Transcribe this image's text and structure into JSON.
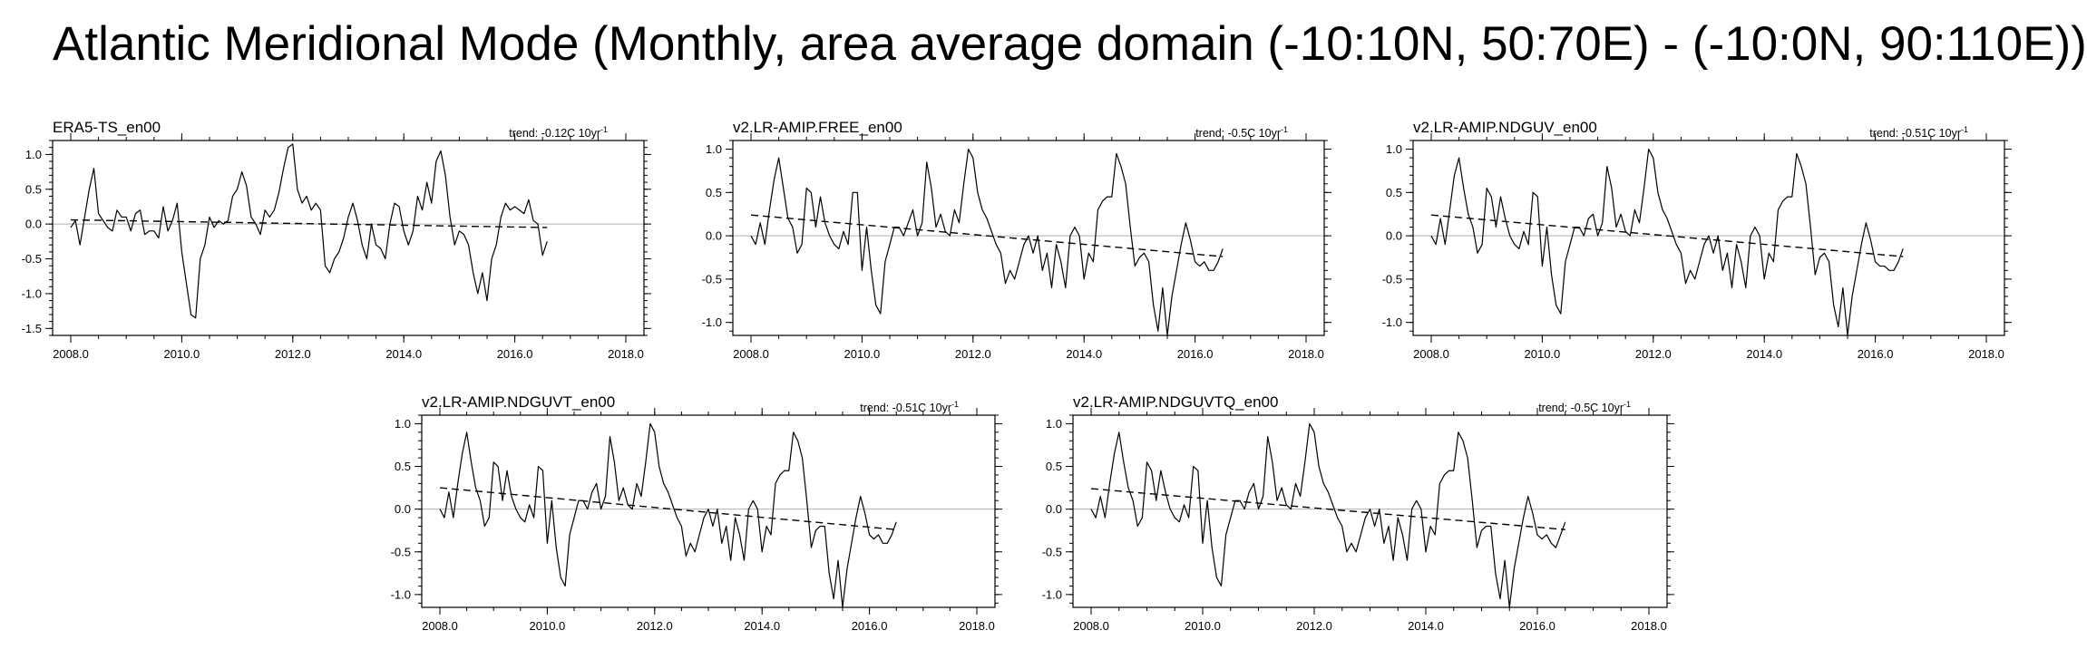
{
  "title": "Atlantic Meridional Mode (Monthly, area average domain (-10:10N, 50:70E) - (-10:0N, 90:110E))",
  "chart_data": [
    {
      "type": "line",
      "title": "ERA5-TS_en00",
      "trend_label": "trend: -0.12C 10yr",
      "trend_label_exponent": "-1",
      "xlim": [
        2008.0,
        2018.0
      ],
      "ylim": [
        -1.6,
        1.2
      ],
      "xticks": [
        2008.0,
        2010.0,
        2012.0,
        2014.0,
        2016.0,
        2018.0
      ],
      "xtick_labels": [
        "2008.0",
        "2010.0",
        "2012.0",
        "2014.0",
        "2016.0",
        "2018.0"
      ],
      "yticks": [
        1.0,
        0.5,
        0.0,
        -0.5,
        -1.0,
        -1.5
      ],
      "ytick_labels": [
        "1.0",
        "0.5",
        "0.0",
        "-0.5",
        "-1.0",
        "-1.5"
      ],
      "zero_line": true,
      "x_start": 2008.0,
      "x_step": 0.08333,
      "series": [
        {
          "values": [
            -0.05,
            0.05,
            -0.3,
            0.1,
            0.5,
            0.8,
            0.15,
            0.05,
            -0.05,
            -0.1,
            0.2,
            0.1,
            0.1,
            -0.1,
            0.15,
            0.2,
            -0.15,
            -0.1,
            -0.1,
            -0.2,
            0.25,
            -0.1,
            0.05,
            0.3,
            -0.4,
            -0.85,
            -1.3,
            -1.35,
            -0.5,
            -0.3,
            0.1,
            -0.05,
            0.05,
            0.0,
            0.05,
            0.4,
            0.5,
            0.75,
            0.55,
            0.1,
            0.0,
            -0.15,
            0.2,
            0.1,
            0.2,
            0.45,
            0.8,
            1.1,
            1.15,
            0.5,
            0.3,
            0.4,
            0.2,
            0.3,
            0.2,
            -0.6,
            -0.7,
            -0.5,
            -0.4,
            -0.2,
            0.1,
            0.3,
            0.05,
            -0.3,
            -0.5,
            0.0,
            -0.3,
            -0.35,
            -0.5,
            0.0,
            0.3,
            0.25,
            -0.1,
            -0.3,
            -0.1,
            0.4,
            0.2,
            0.6,
            0.3,
            0.9,
            1.05,
            0.7,
            0.1,
            -0.3,
            -0.1,
            -0.15,
            -0.3,
            -0.7,
            -1.0,
            -0.7,
            -1.1,
            -0.5,
            -0.3,
            0.1,
            0.3,
            0.2,
            0.25,
            0.2,
            0.15,
            0.35,
            0.05,
            0.0,
            -0.45,
            -0.25
          ]
        }
      ],
      "trend": [
        0.06,
        -0.05
      ]
    },
    {
      "type": "line",
      "title": "v2.LR-AMIP.FREE_en00",
      "trend_label": "trend: -0.5C 10yr",
      "trend_label_exponent": "-1",
      "xlim": [
        2008.0,
        2018.0
      ],
      "ylim": [
        -1.15,
        1.1
      ],
      "xticks": [
        2008.0,
        2010.0,
        2012.0,
        2014.0,
        2016.0,
        2018.0
      ],
      "xtick_labels": [
        "2008.0",
        "2010.0",
        "2012.0",
        "2014.0",
        "2016.0",
        "2018.0"
      ],
      "yticks": [
        1.0,
        0.5,
        0.0,
        -0.5,
        -1.0
      ],
      "ytick_labels": [
        "1.0",
        "0.5",
        "0.0",
        "-0.5",
        "-1.0"
      ],
      "zero_line": true,
      "x_start": 2008.0,
      "x_step": 0.08333,
      "series": [
        {
          "values": [
            0.0,
            -0.1,
            0.15,
            -0.1,
            0.3,
            0.65,
            0.9,
            0.55,
            0.2,
            0.1,
            -0.2,
            -0.1,
            0.55,
            0.5,
            0.1,
            0.45,
            0.15,
            0.0,
            -0.1,
            -0.15,
            0.05,
            -0.1,
            0.5,
            0.5,
            -0.4,
            0.1,
            -0.4,
            -0.8,
            -0.9,
            -0.3,
            -0.1,
            0.1,
            0.1,
            0.0,
            0.15,
            0.3,
            0.0,
            0.15,
            0.85,
            0.55,
            0.1,
            0.25,
            0.05,
            0.0,
            0.3,
            0.15,
            0.6,
            1.0,
            0.9,
            0.5,
            0.3,
            0.2,
            0.05,
            -0.1,
            -0.2,
            -0.55,
            -0.4,
            -0.5,
            -0.3,
            -0.1,
            0.0,
            -0.2,
            0.0,
            -0.4,
            -0.2,
            -0.6,
            -0.1,
            -0.3,
            -0.6,
            0.0,
            0.1,
            0.0,
            -0.5,
            -0.2,
            -0.3,
            0.3,
            0.4,
            0.45,
            0.45,
            0.95,
            0.8,
            0.6,
            0.1,
            -0.35,
            -0.25,
            -0.2,
            -0.3,
            -0.8,
            -1.1,
            -0.6,
            -1.15,
            -0.7,
            -0.4,
            -0.1,
            0.15,
            -0.05,
            -0.3,
            -0.35,
            -0.3,
            -0.4,
            -0.4,
            -0.3,
            -0.15
          ]
        }
      ],
      "trend": [
        0.24,
        -0.24
      ]
    },
    {
      "type": "line",
      "title": "v2.LR-AMIP.NDGUV_en00",
      "trend_label": "trend: -0.51C 10yr",
      "trend_label_exponent": "-1",
      "xlim": [
        2008.0,
        2018.0
      ],
      "ylim": [
        -1.15,
        1.1
      ],
      "xticks": [
        2008.0,
        2010.0,
        2012.0,
        2014.0,
        2016.0,
        2018.0
      ],
      "xtick_labels": [
        "2008.0",
        "2010.0",
        "2012.0",
        "2014.0",
        "2016.0",
        "2018.0"
      ],
      "yticks": [
        1.0,
        0.5,
        0.0,
        -0.5,
        -1.0
      ],
      "ytick_labels": [
        "1.0",
        "0.5",
        "0.0",
        "-0.5",
        "-1.0"
      ],
      "zero_line": true,
      "x_start": 2008.0,
      "x_step": 0.08333,
      "series": [
        {
          "values": [
            0.0,
            -0.1,
            0.2,
            -0.1,
            0.3,
            0.7,
            0.9,
            0.55,
            0.25,
            0.1,
            -0.2,
            -0.1,
            0.55,
            0.45,
            0.1,
            0.45,
            0.2,
            0.0,
            -0.1,
            -0.15,
            0.05,
            -0.1,
            0.5,
            0.45,
            -0.35,
            0.1,
            -0.45,
            -0.8,
            -0.9,
            -0.3,
            -0.1,
            0.1,
            0.1,
            0.0,
            0.2,
            0.25,
            0.0,
            0.15,
            0.8,
            0.55,
            0.1,
            0.25,
            0.05,
            0.0,
            0.3,
            0.15,
            0.55,
            1.0,
            0.9,
            0.5,
            0.3,
            0.2,
            0.05,
            -0.1,
            -0.2,
            -0.55,
            -0.4,
            -0.5,
            -0.3,
            -0.1,
            0.0,
            -0.2,
            0.0,
            -0.4,
            -0.2,
            -0.6,
            -0.1,
            -0.3,
            -0.6,
            0.0,
            0.1,
            0.0,
            -0.5,
            -0.2,
            -0.3,
            0.3,
            0.4,
            0.45,
            0.45,
            0.95,
            0.8,
            0.6,
            0.1,
            -0.45,
            -0.25,
            -0.2,
            -0.3,
            -0.8,
            -1.05,
            -0.6,
            -1.15,
            -0.7,
            -0.4,
            -0.1,
            0.15,
            -0.05,
            -0.3,
            -0.35,
            -0.35,
            -0.4,
            -0.4,
            -0.3,
            -0.15
          ]
        }
      ],
      "trend": [
        0.24,
        -0.24
      ]
    },
    {
      "type": "line",
      "title": "v2.LR-AMIP.NDGUVT_en00",
      "trend_label": "trend: -0.51C 10yr",
      "trend_label_exponent": "-1",
      "xlim": [
        2008.0,
        2018.0
      ],
      "ylim": [
        -1.15,
        1.1
      ],
      "xticks": [
        2008.0,
        2010.0,
        2012.0,
        2014.0,
        2016.0,
        2018.0
      ],
      "xtick_labels": [
        "2008.0",
        "2010.0",
        "2012.0",
        "2014.0",
        "2016.0",
        "2018.0"
      ],
      "yticks": [
        1.0,
        0.5,
        0.0,
        -0.5,
        -1.0
      ],
      "ytick_labels": [
        "1.0",
        "0.5",
        "0.0",
        "-0.5",
        "-1.0"
      ],
      "zero_line": true,
      "x_start": 2008.0,
      "x_step": 0.08333,
      "series": [
        {
          "values": [
            0.0,
            -0.1,
            0.2,
            -0.1,
            0.3,
            0.65,
            0.9,
            0.55,
            0.25,
            0.1,
            -0.2,
            -0.1,
            0.55,
            0.5,
            0.1,
            0.45,
            0.15,
            0.0,
            -0.1,
            -0.15,
            0.05,
            -0.1,
            0.5,
            0.45,
            -0.4,
            0.1,
            -0.45,
            -0.8,
            -0.9,
            -0.3,
            -0.1,
            0.1,
            0.1,
            0.0,
            0.2,
            0.3,
            0.0,
            0.15,
            0.85,
            0.55,
            0.1,
            0.25,
            0.05,
            0.0,
            0.3,
            0.15,
            0.55,
            1.0,
            0.9,
            0.5,
            0.3,
            0.2,
            0.05,
            -0.1,
            -0.2,
            -0.55,
            -0.4,
            -0.5,
            -0.3,
            -0.1,
            0.0,
            -0.2,
            0.0,
            -0.4,
            -0.2,
            -0.6,
            -0.1,
            -0.3,
            -0.6,
            0.0,
            0.1,
            0.0,
            -0.5,
            -0.2,
            -0.3,
            0.3,
            0.4,
            0.45,
            0.45,
            0.9,
            0.8,
            0.6,
            0.1,
            -0.45,
            -0.25,
            -0.2,
            -0.2,
            -0.75,
            -1.05,
            -0.6,
            -1.15,
            -0.7,
            -0.4,
            -0.1,
            0.15,
            -0.05,
            -0.3,
            -0.35,
            -0.3,
            -0.4,
            -0.4,
            -0.3,
            -0.15
          ]
        }
      ],
      "trend": [
        0.25,
        -0.24
      ]
    },
    {
      "type": "line",
      "title": "v2.LR-AMIP.NDGUVTQ_en00",
      "trend_label": "trend: -0.5C 10yr",
      "trend_label_exponent": "-1",
      "xlim": [
        2008.0,
        2018.0
      ],
      "ylim": [
        -1.15,
        1.1
      ],
      "xticks": [
        2008.0,
        2010.0,
        2012.0,
        2014.0,
        2016.0,
        2018.0
      ],
      "xtick_labels": [
        "2008.0",
        "2010.0",
        "2012.0",
        "2014.0",
        "2016.0",
        "2018.0"
      ],
      "yticks": [
        1.0,
        0.5,
        0.0,
        -0.5,
        -1.0
      ],
      "ytick_labels": [
        "1.0",
        "0.5",
        "0.0",
        "-0.5",
        "-1.0"
      ],
      "zero_line": true,
      "x_start": 2008.0,
      "x_step": 0.08333,
      "series": [
        {
          "values": [
            0.0,
            -0.1,
            0.15,
            -0.1,
            0.3,
            0.65,
            0.9,
            0.55,
            0.25,
            0.1,
            -0.2,
            -0.1,
            0.55,
            0.45,
            0.1,
            0.45,
            0.2,
            0.0,
            -0.1,
            -0.15,
            0.05,
            -0.1,
            0.5,
            0.45,
            -0.4,
            0.1,
            -0.45,
            -0.8,
            -0.9,
            -0.3,
            -0.1,
            0.1,
            0.1,
            0.0,
            0.2,
            0.3,
            0.0,
            0.15,
            0.85,
            0.55,
            0.1,
            0.25,
            0.05,
            0.0,
            0.3,
            0.15,
            0.55,
            1.0,
            0.9,
            0.5,
            0.3,
            0.2,
            0.05,
            -0.1,
            -0.2,
            -0.5,
            -0.4,
            -0.5,
            -0.3,
            -0.1,
            0.0,
            -0.2,
            0.0,
            -0.4,
            -0.2,
            -0.6,
            -0.1,
            -0.3,
            -0.6,
            0.0,
            0.1,
            0.0,
            -0.5,
            -0.2,
            -0.3,
            0.3,
            0.4,
            0.45,
            0.45,
            0.9,
            0.8,
            0.6,
            0.1,
            -0.45,
            -0.25,
            -0.2,
            -0.2,
            -0.75,
            -1.05,
            -0.6,
            -1.15,
            -0.7,
            -0.4,
            -0.1,
            0.15,
            -0.05,
            -0.3,
            -0.35,
            -0.3,
            -0.4,
            -0.45,
            -0.3,
            -0.15
          ]
        }
      ],
      "trend": [
        0.24,
        -0.24
      ]
    }
  ]
}
